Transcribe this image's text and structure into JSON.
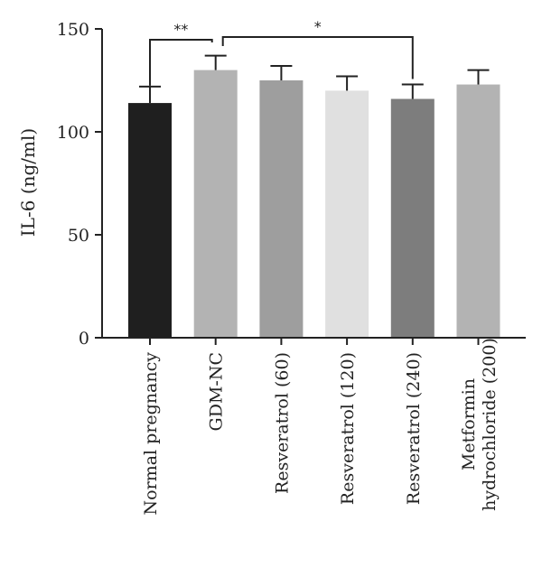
{
  "chart_data": {
    "type": "bar",
    "title": "",
    "xlabel": "",
    "ylabel": "IL-6 (ng/ml)",
    "ylim": [
      0,
      150
    ],
    "yticks": [
      0,
      50,
      100,
      150
    ],
    "grid": false,
    "categories": [
      [
        "Normal pregnancy"
      ],
      [
        "GDM-NC"
      ],
      [
        "Resveratrol (60)"
      ],
      [
        "Resveratrol (120)"
      ],
      [
        "Resveratrol (240)"
      ],
      [
        "Metformin",
        "hydrochloride (200)"
      ]
    ],
    "values": [
      114,
      130,
      125,
      120,
      116,
      123
    ],
    "errors": [
      8,
      7,
      7,
      7,
      7,
      7
    ],
    "colors": [
      "#1f1f1f",
      "#b3b3b3",
      "#9e9e9e",
      "#e0e0e0",
      "#7d7d7d",
      "#b3b3b3"
    ],
    "significance": [
      {
        "from": 0,
        "to": 1,
        "label": "**"
      },
      {
        "from": 1,
        "to": 4,
        "label": "*"
      }
    ]
  }
}
